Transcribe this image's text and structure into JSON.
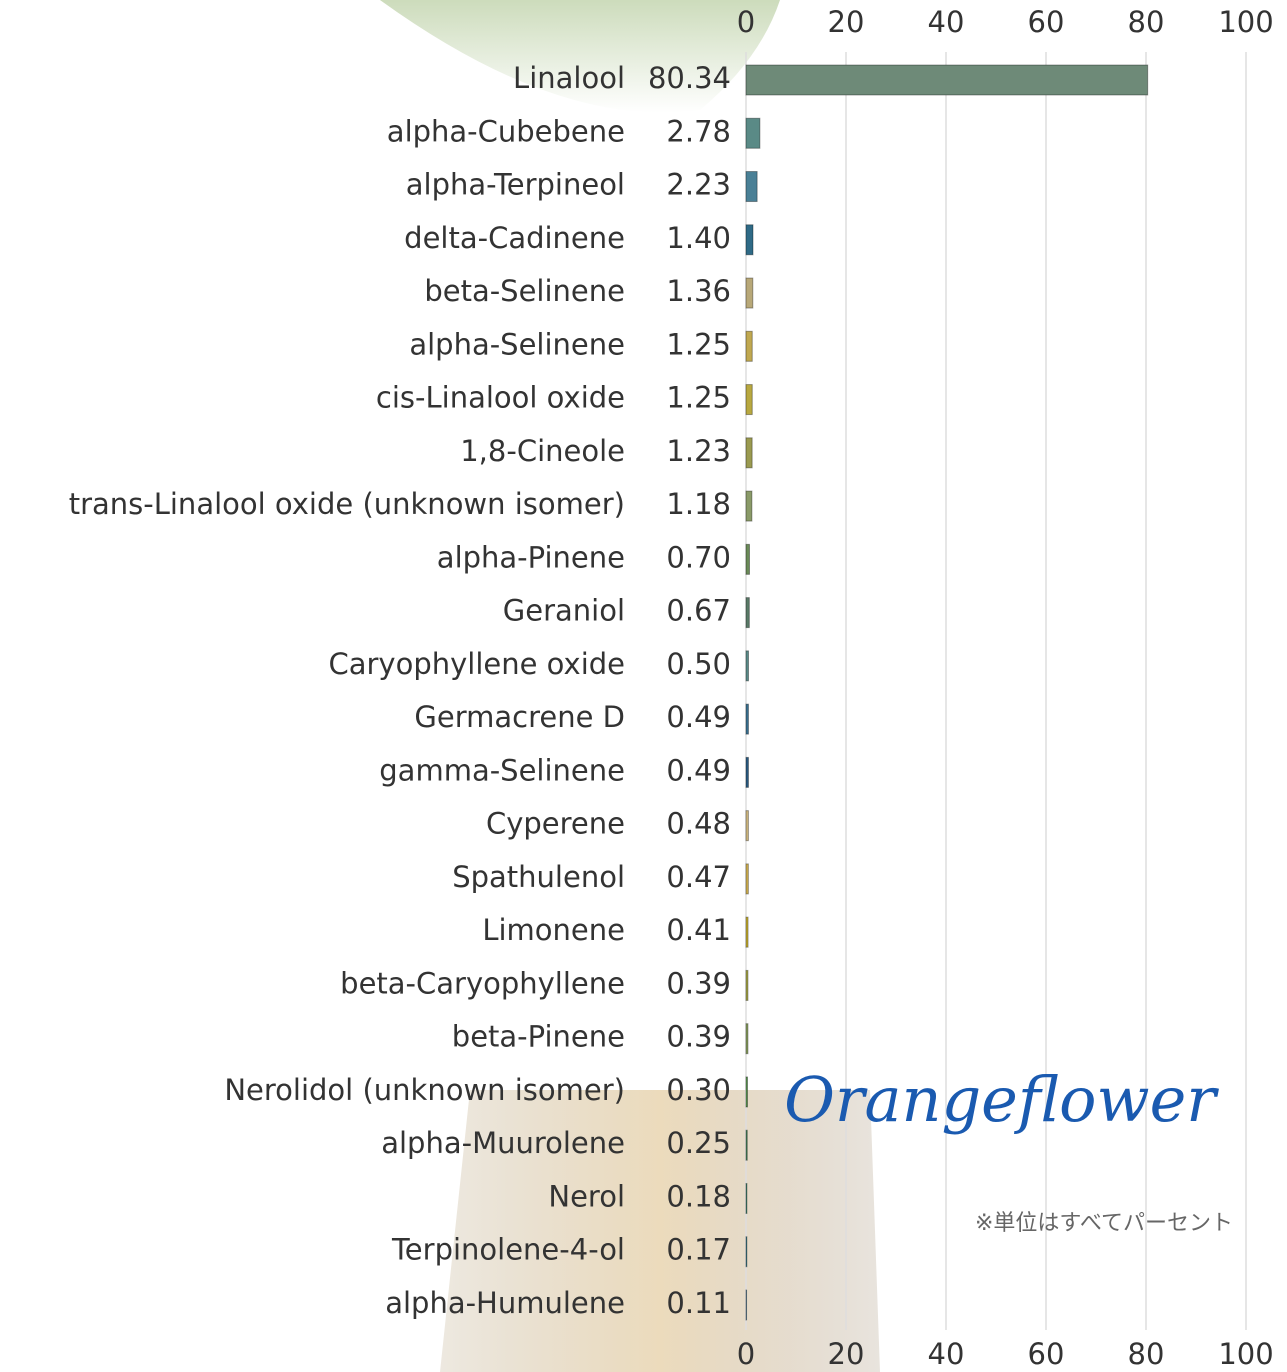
{
  "chart_data": {
    "type": "bar",
    "orientation": "horizontal",
    "categories": [
      "Linalool",
      "alpha-Cubebene",
      "alpha-Terpineol",
      "delta-Cadinene",
      "beta-Selinene",
      "alpha-Selinene",
      "cis-Linalool oxide",
      "1,8-Cineole",
      "trans-Linalool oxide (unknown isomer)",
      "alpha-Pinene",
      "Geraniol",
      "Caryophyllene oxide",
      "Germacrene D",
      "gamma-Selinene",
      "Cyperene",
      "Spathulenol",
      "Limonene",
      "beta-Caryophyllene",
      "beta-Pinene",
      "Nerolidol (unknown isomer)",
      "alpha-Muurolene",
      "Nerol",
      "Terpinolene-4-ol",
      "alpha-Humulene"
    ],
    "values": [
      80.34,
      2.78,
      2.23,
      1.4,
      1.36,
      1.25,
      1.25,
      1.23,
      1.18,
      0.7,
      0.67,
      0.5,
      0.49,
      0.49,
      0.48,
      0.47,
      0.41,
      0.39,
      0.39,
      0.3,
      0.25,
      0.18,
      0.17,
      0.11
    ],
    "value_labels": [
      "80.34",
      "2.78",
      "2.23",
      "1.40",
      "1.36",
      "1.25",
      "1.25",
      "1.23",
      "1.18",
      "0.70",
      "0.67",
      "0.50",
      "0.49",
      "0.49",
      "0.48",
      "0.47",
      "0.41",
      "0.39",
      "0.39",
      "0.30",
      "0.25",
      "0.18",
      "0.17",
      "0.11"
    ],
    "colors": [
      "#6e8a78",
      "#5a8a86",
      "#4a8096",
      "#2f6a86",
      "#b8a878",
      "#c0a850",
      "#b8a840",
      "#9a9a50",
      "#8a9a68",
      "#6a8a58",
      "#5a7a68",
      "#5a8a88",
      "#3a7090",
      "#2a5a80",
      "#d0b880",
      "#d0b050",
      "#c8b030",
      "#a8a848",
      "#8aa060",
      "#5a9a50",
      "#4a8a60",
      "#3a8a70",
      "#2a7a8a",
      "#1a5a80"
    ],
    "xlim": [
      0,
      100
    ],
    "xticks": [
      0,
      20,
      40,
      60,
      80,
      100
    ],
    "grid": true,
    "logo": "Orangeflower",
    "note": "※単位はすべてパーセント"
  }
}
